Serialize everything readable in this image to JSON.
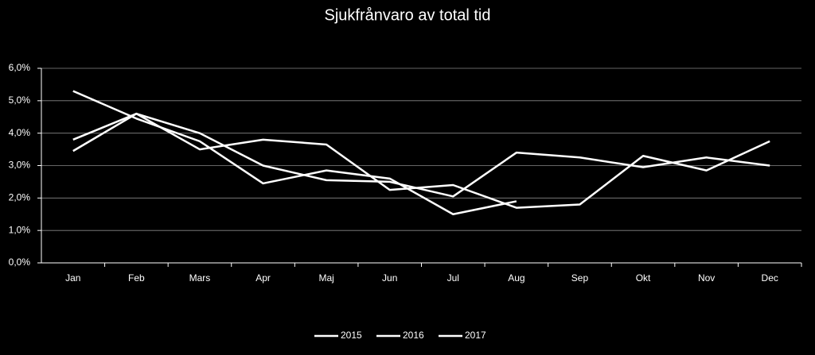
{
  "chart_data": {
    "type": "line",
    "title": "Sjukfrånvaro av total tid",
    "categories": [
      "Jan",
      "Feb",
      "Mars",
      "Apr",
      "Maj",
      "Jun",
      "Jul",
      "Aug",
      "Sep",
      "Okt",
      "Nov",
      "Dec"
    ],
    "series": [
      {
        "name": "2015",
        "color": "#ffffff",
        "values": [
          3.8,
          4.6,
          4.0,
          3.0,
          2.55,
          2.5,
          2.05,
          3.4,
          3.25,
          2.95,
          3.25,
          3.0
        ]
      },
      {
        "name": "2016",
        "color": "#ffffff",
        "values": [
          3.45,
          4.6,
          3.5,
          3.8,
          3.65,
          2.25,
          2.4,
          1.7,
          1.8,
          3.3,
          2.85,
          3.75
        ]
      },
      {
        "name": "2017",
        "color": "#ffffff",
        "values": [
          5.3,
          4.45,
          3.75,
          2.45,
          2.85,
          2.6,
          1.5,
          1.9,
          null,
          null,
          null,
          null
        ]
      }
    ],
    "ylim": [
      0,
      6
    ],
    "yticks": [
      {
        "value": 0,
        "label": "0,0%"
      },
      {
        "value": 1,
        "label": "1,0%"
      },
      {
        "value": 2,
        "label": "2,0%"
      },
      {
        "value": 3,
        "label": "3,0%"
      },
      {
        "value": 4,
        "label": "4,0%"
      },
      {
        "value": 5,
        "label": "5,0%"
      },
      {
        "value": 6,
        "label": "6,0%"
      }
    ],
    "grid": true,
    "legend": "bottom"
  }
}
